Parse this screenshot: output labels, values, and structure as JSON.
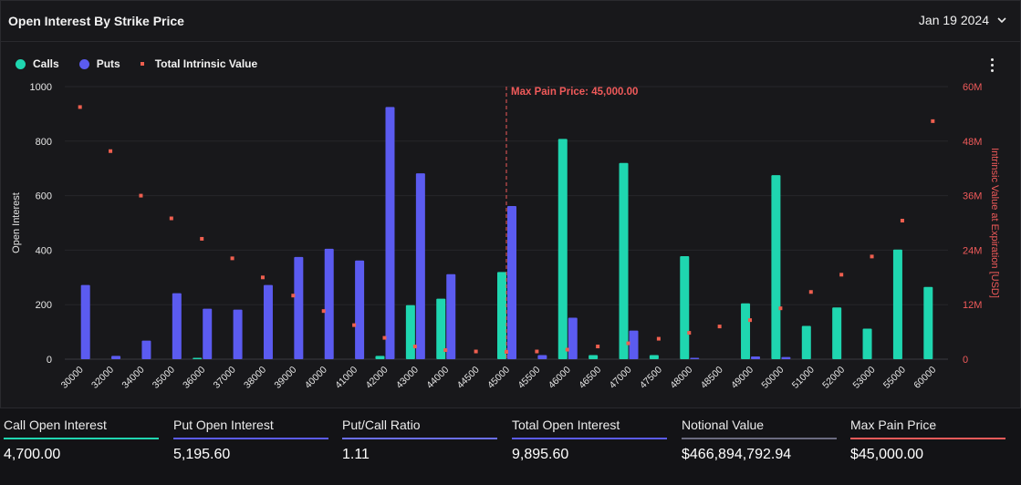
{
  "header": {
    "title": "Open Interest By Strike Price",
    "date": "Jan 19 2024"
  },
  "legend": [
    {
      "label": "Calls",
      "color": "#1fd6b0",
      "shape": "circle"
    },
    {
      "label": "Puts",
      "color": "#5b5bf0",
      "shape": "circle"
    },
    {
      "label": "Total Intrinsic Value",
      "color": "#ef5f4f",
      "shape": "square"
    }
  ],
  "colors": {
    "calls": "#1fd6b0",
    "puts": "#5b5bf0",
    "intrinsic": "#ef5f4f",
    "max_pain": "#f05a5a"
  },
  "chart_data": {
    "type": "bar",
    "categories": [
      "30000",
      "32000",
      "34000",
      "35000",
      "36000",
      "37000",
      "38000",
      "39000",
      "40000",
      "41000",
      "42000",
      "43000",
      "44000",
      "44500",
      "45000",
      "45500",
      "46000",
      "46500",
      "47000",
      "47500",
      "48000",
      "48500",
      "49000",
      "50000",
      "51000",
      "52000",
      "53000",
      "55000",
      "60000"
    ],
    "series": [
      {
        "name": "Calls",
        "type": "bar",
        "axis": "left",
        "values": [
          0,
          0,
          0,
          0,
          5,
          0,
          0,
          0,
          0,
          0,
          12,
          198,
          222,
          0,
          320,
          0,
          808,
          15,
          720,
          15,
          378,
          0,
          205,
          675,
          122,
          190,
          112,
          402,
          265
        ]
      },
      {
        "name": "Puts",
        "type": "bar",
        "axis": "left",
        "values": [
          272,
          12,
          68,
          242,
          185,
          182,
          272,
          375,
          405,
          362,
          925,
          682,
          312,
          0,
          562,
          15,
          152,
          0,
          105,
          0,
          5,
          0,
          10,
          8,
          0,
          0,
          0,
          0,
          0
        ]
      },
      {
        "name": "Total Intrinsic Value",
        "type": "scatter",
        "axis": "right",
        "values": [
          55500000,
          45800000,
          36000000,
          31000000,
          26500000,
          22200000,
          18000000,
          14000000,
          10600000,
          7500000,
          4700000,
          2800000,
          2000000,
          1700000,
          1600000,
          1700000,
          2100000,
          2800000,
          3500000,
          4500000,
          5800000,
          7200000,
          8600000,
          11200000,
          14800000,
          18600000,
          22600000,
          30500000,
          52400000
        ]
      }
    ],
    "yaxis_left": {
      "label": "Open Interest",
      "min": 0,
      "max": 1000,
      "ticks": [
        "0",
        "200",
        "400",
        "600",
        "800",
        "1000"
      ]
    },
    "yaxis_right": {
      "label": "Intrinsic Value at Expiration [USD]",
      "min": 0,
      "max": 60000000,
      "ticks": [
        "0",
        "12M",
        "24M",
        "36M",
        "48M",
        "60M"
      ]
    },
    "annotation": {
      "label": "Max Pain Price: 45,000.00",
      "x": "45000"
    },
    "grid": true,
    "legend_position": "top-left"
  },
  "stats": [
    {
      "label": "Call Open Interest",
      "value": "4,700.00",
      "color": "#1fd6b0"
    },
    {
      "label": "Put Open Interest",
      "value": "5,195.60",
      "color": "#5b5bf0"
    },
    {
      "label": "Put/Call Ratio",
      "value": "1.11",
      "color": "#6b6ff0"
    },
    {
      "label": "Total Open Interest",
      "value": "9,895.60",
      "color": "#5b5bf0"
    },
    {
      "label": "Notional Value",
      "value": "$466,894,792.94",
      "color": "#6b6b80"
    },
    {
      "label": "Max Pain Price",
      "value": "$45,000.00",
      "color": "#f05a5a"
    }
  ]
}
